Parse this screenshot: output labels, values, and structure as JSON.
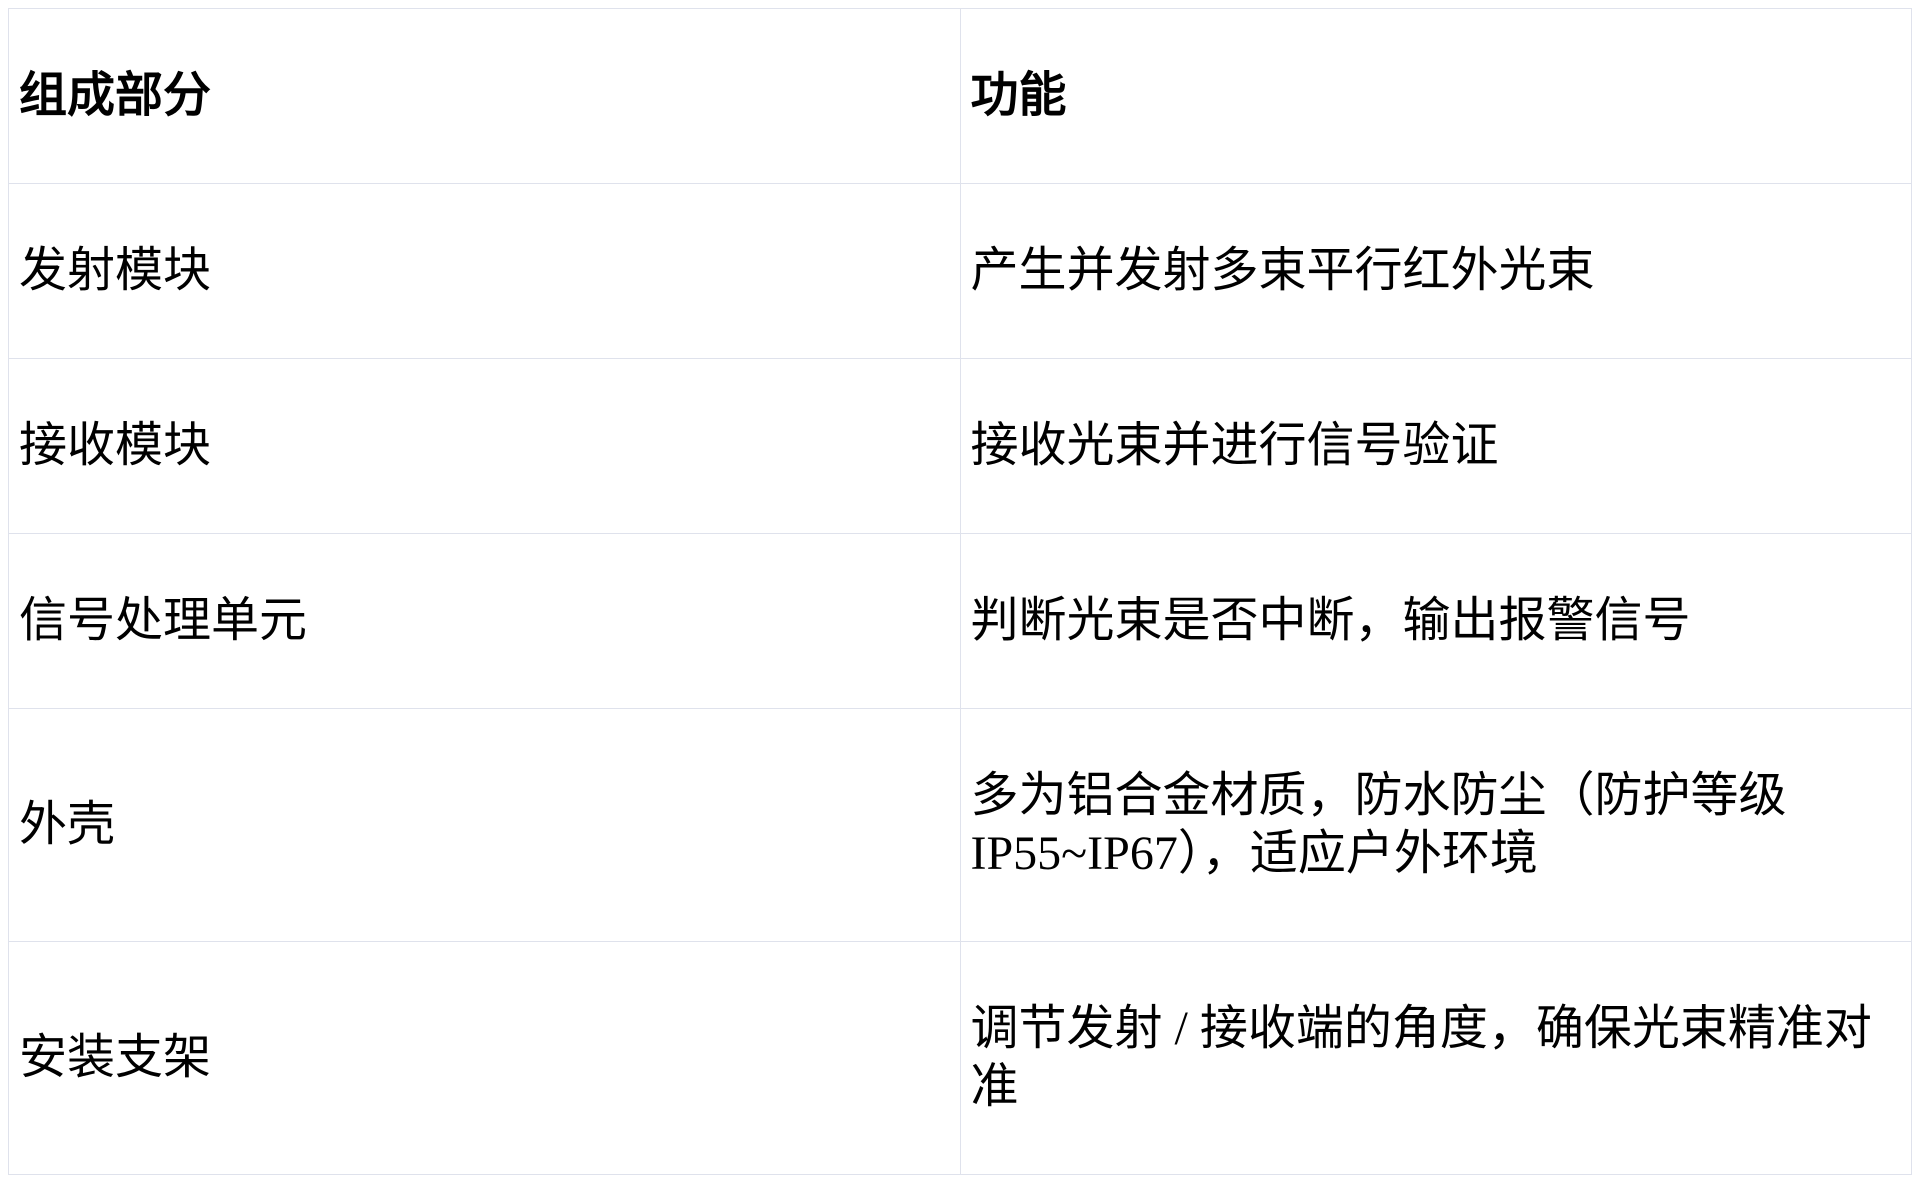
{
  "colors": {
    "background": "#ffffff",
    "text": "#000000",
    "table_border": "#dfe2ec"
  },
  "table": {
    "columns": [
      {
        "key": "component",
        "label": "组成部分"
      },
      {
        "key": "function",
        "label": "功能"
      }
    ],
    "rows": [
      {
        "component": "发射模块",
        "function": "产生并发射多束平行红外光束"
      },
      {
        "component": "接收模块",
        "function": "接收光束并进行信号验证"
      },
      {
        "component": "信号处理单元",
        "function": "判断光束是否中断，输出报警信号"
      },
      {
        "component": "外壳",
        "function": "多为铝合金材质，防水防尘（防护等级\nIP55~IP67），适应户外环境"
      },
      {
        "component": "安装支架",
        "function": "调节发射 / 接收端的角度，确保光束精准对\n准"
      }
    ]
  }
}
